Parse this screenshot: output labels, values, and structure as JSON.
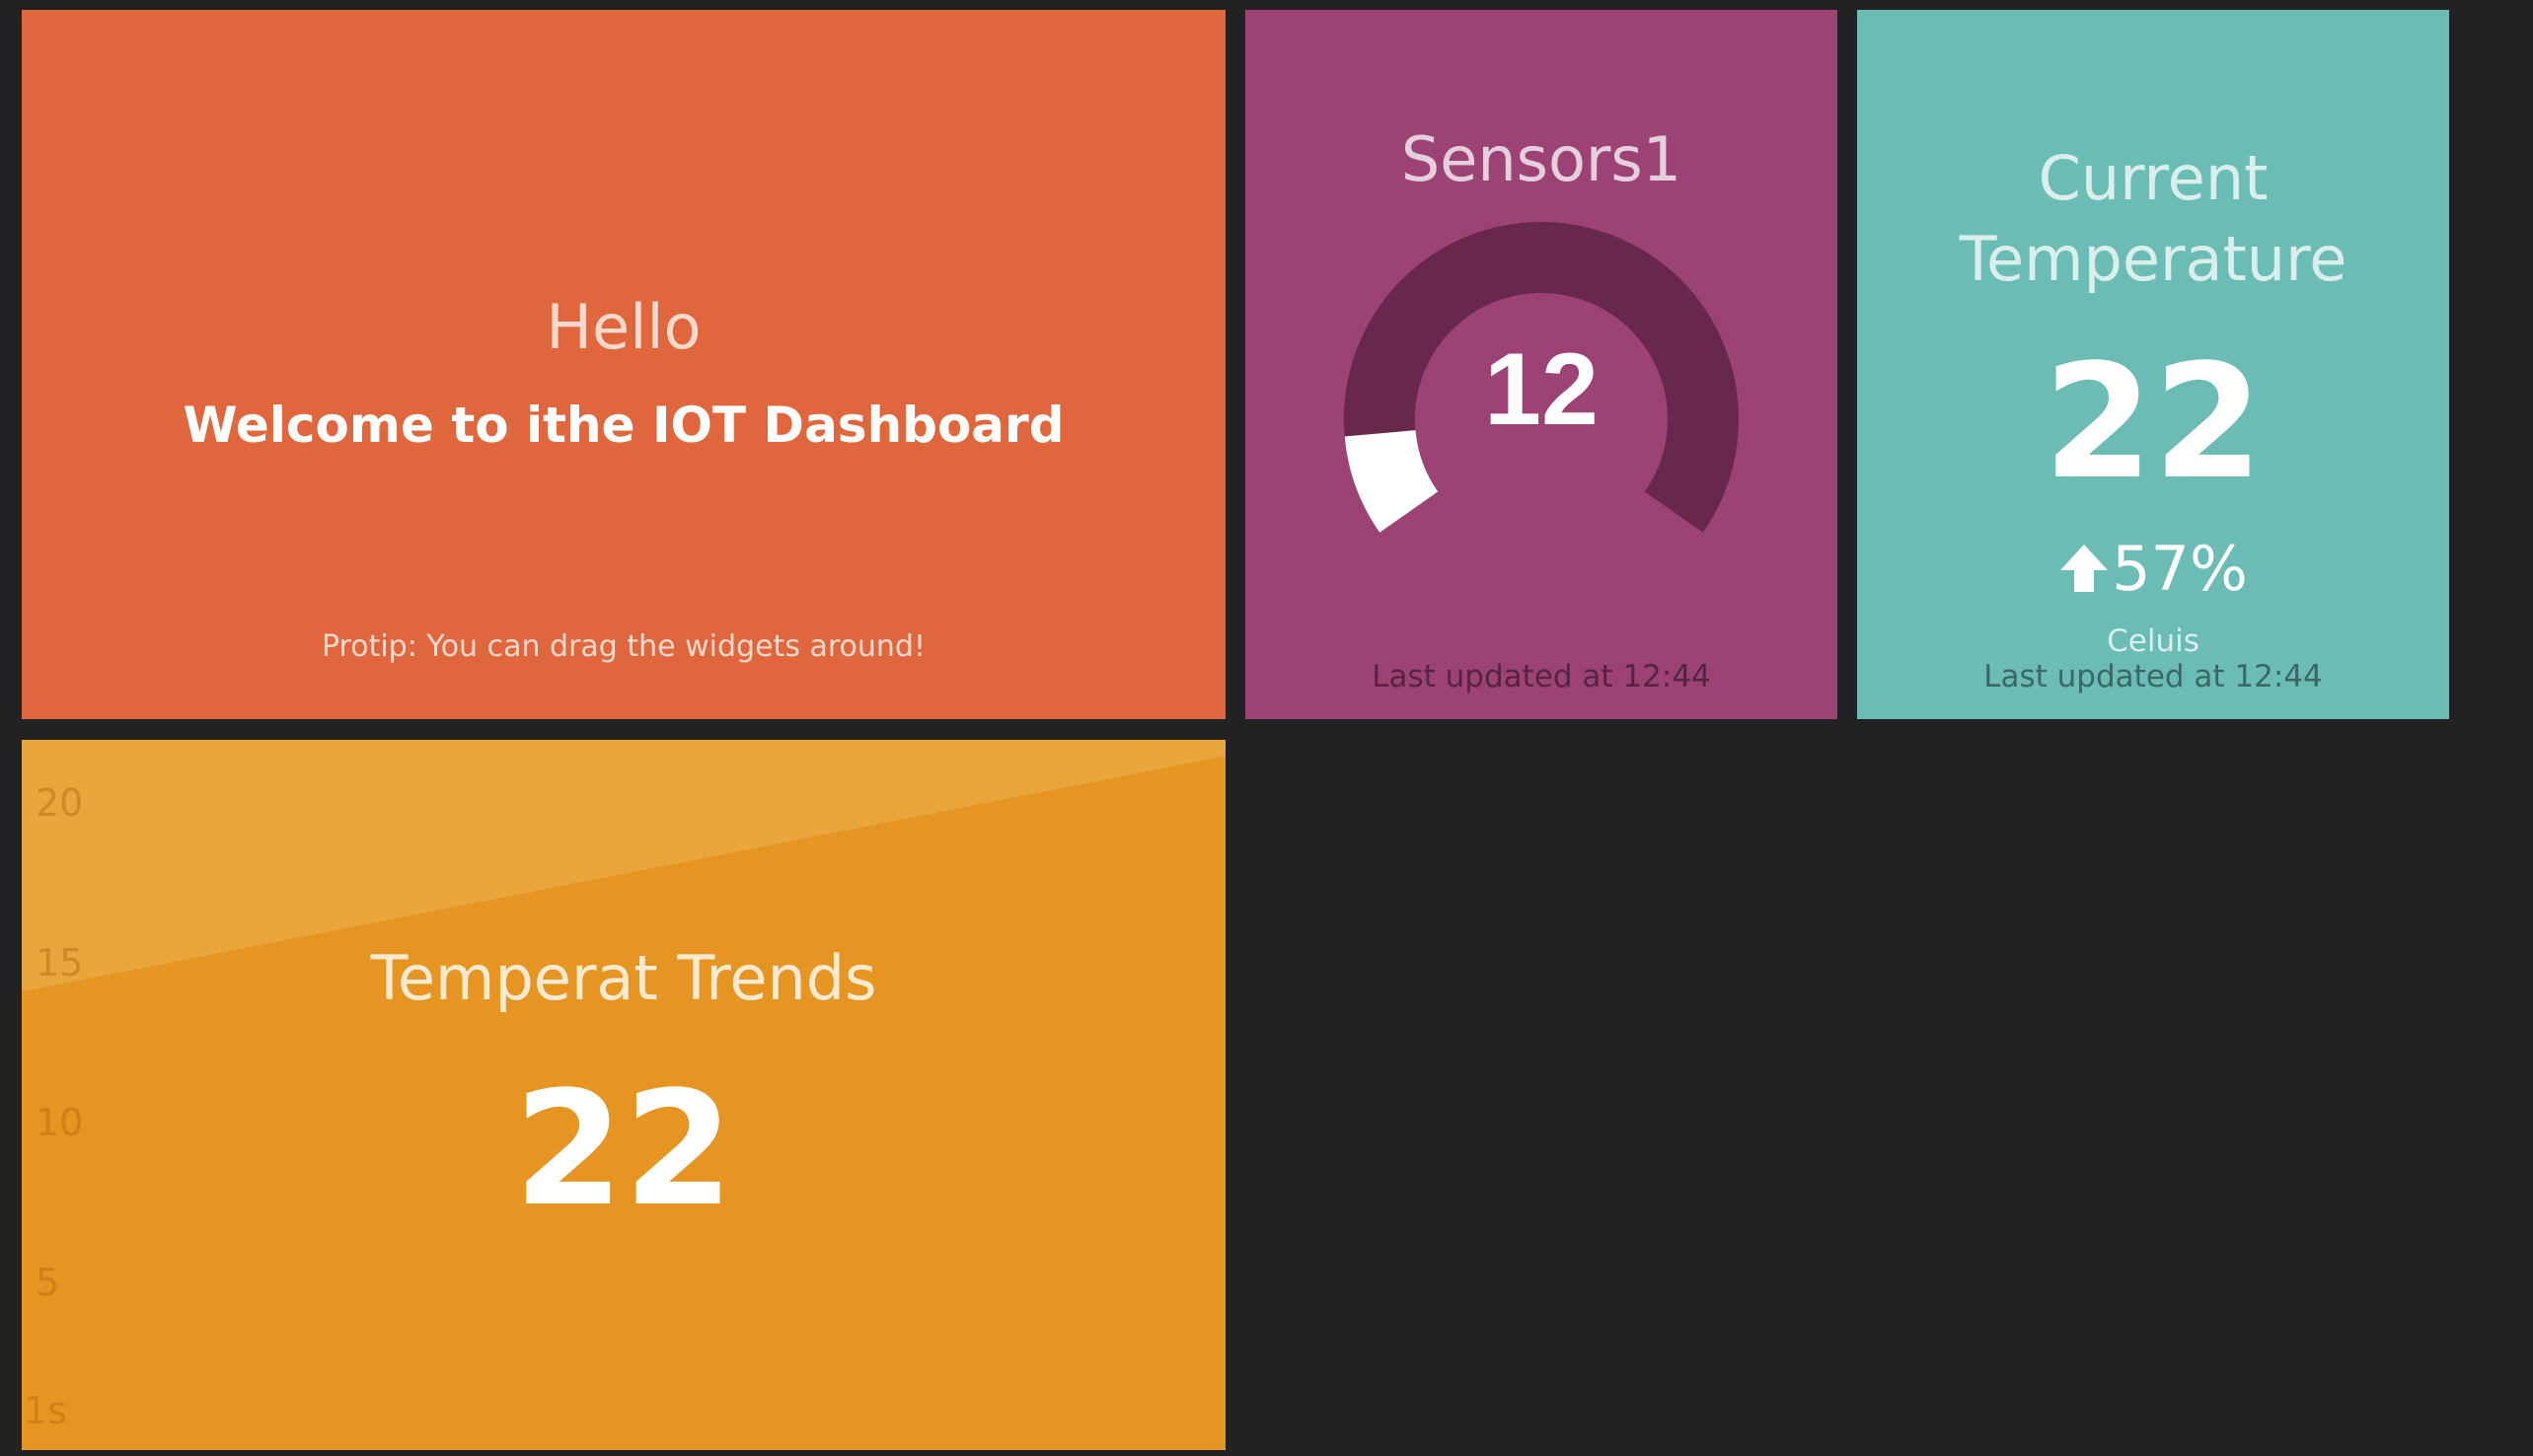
{
  "widgets": {
    "hello": {
      "title": "Hello",
      "text": "Welcome to ithe IOT Dashboard",
      "more_info": "Protip: You can drag the widgets around!",
      "color": "#e0673d"
    },
    "meter": {
      "title": "Sensors1",
      "value": "12",
      "fraction": 0.12,
      "updated": "Last updated at 12:44",
      "color": "#9c4274"
    },
    "number": {
      "title": "Current Temperature",
      "value": "22",
      "change": "57%",
      "change_direction": "up",
      "more_info": "Celuis",
      "updated": "Last updated at 12:44",
      "color": "#6bbcb4"
    },
    "graph": {
      "title": "Temperat Trends",
      "value": "22",
      "color": "#e9a63d"
    }
  },
  "chart_data": {
    "type": "area",
    "title": "Temperat Trends",
    "y_ticks": [
      "20",
      "15",
      "10",
      "5"
    ],
    "x_ticks": [
      "1s"
    ],
    "ylim": [
      0,
      22
    ],
    "x": [
      0,
      1
    ],
    "values": [
      14.2,
      21.5
    ],
    "fill_color": "#e69522"
  }
}
